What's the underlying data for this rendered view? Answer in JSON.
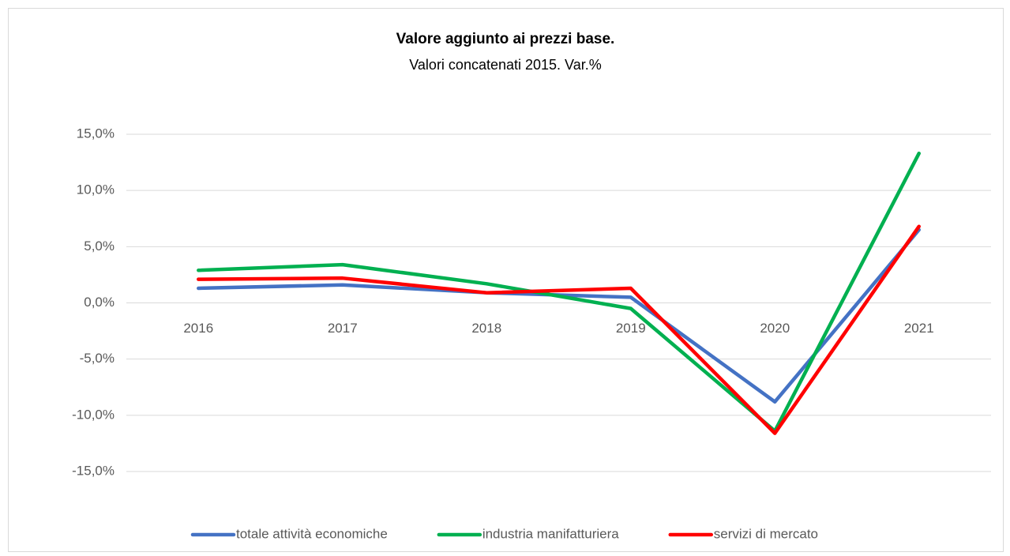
{
  "chart_data": {
    "type": "line",
    "title": "Valore aggiunto ai prezzi base.",
    "subtitle": "Valori concatenati 2015. Var.%",
    "categories": [
      "2016",
      "2017",
      "2018",
      "2019",
      "2020",
      "2021"
    ],
    "series": [
      {
        "name": "totale attività economiche",
        "color": "#4472c4",
        "values": [
          1.3,
          1.6,
          0.9,
          0.5,
          -8.8,
          6.5
        ]
      },
      {
        "name": "industria manifatturiera",
        "color": "#00b050",
        "values": [
          2.9,
          3.4,
          1.7,
          -0.5,
          -11.4,
          13.3
        ]
      },
      {
        "name": "servizi di mercato",
        "color": "#ff0000",
        "values": [
          2.1,
          2.2,
          0.9,
          1.3,
          -11.6,
          6.8
        ]
      }
    ],
    "ylim": [
      -15,
      15
    ],
    "yticks": [
      {
        "value": -15,
        "label": "-15,0%"
      },
      {
        "value": -10,
        "label": "-10,0%"
      },
      {
        "value": -5,
        "label": "-5,0%"
      },
      {
        "value": 0,
        "label": "0,0%"
      },
      {
        "value": 5,
        "label": "5,0%"
      },
      {
        "value": 10,
        "label": "10,0%"
      },
      {
        "value": 15,
        "label": "15,0%"
      }
    ],
    "grid": true,
    "legend": "bottom"
  }
}
